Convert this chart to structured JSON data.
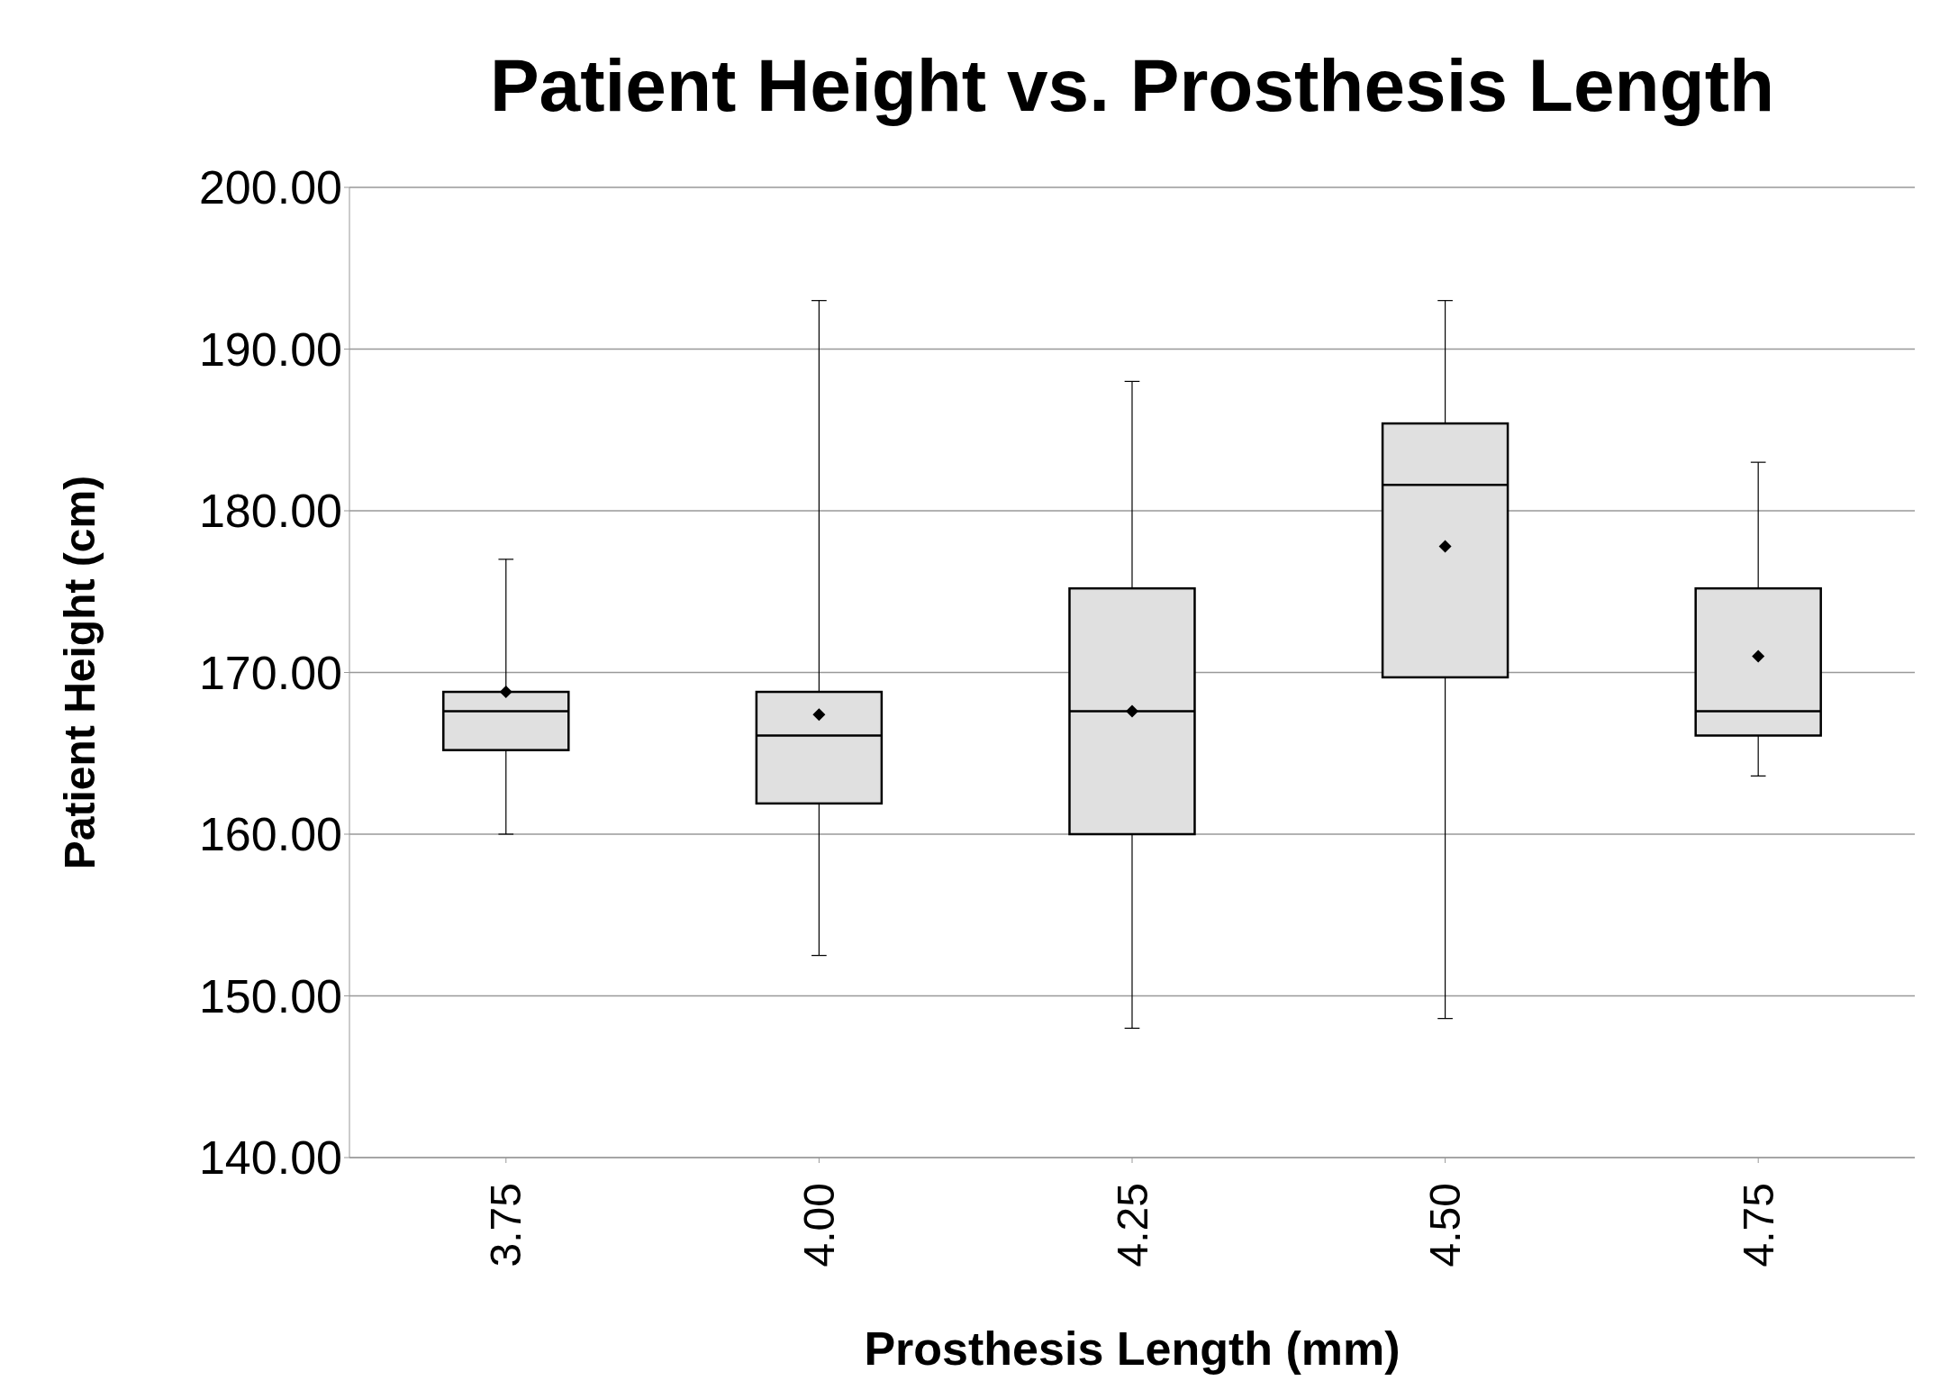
{
  "chart_data": {
    "type": "box",
    "title": "Patient Height vs. Prosthesis Length",
    "xlabel": "Prosthesis Length (mm)",
    "ylabel": "Patient Height (cm)",
    "categories": [
      "3.75",
      "4.00",
      "4.25",
      "4.50",
      "4.75"
    ],
    "color": "#e0e0e0",
    "boxes": [
      {
        "low": 160.0,
        "q1": 165.2,
        "median": 167.6,
        "q3": 168.8,
        "high": 177.0,
        "mean": 168.8
      },
      {
        "low": 152.5,
        "q1": 161.9,
        "median": 166.1,
        "q3": 168.8,
        "high": 193.0,
        "mean": 167.4
      },
      {
        "low": 148.0,
        "q1": 160.0,
        "median": 167.6,
        "q3": 175.2,
        "high": 188.0,
        "mean": 167.6
      },
      {
        "low": 148.6,
        "q1": 169.7,
        "median": 181.6,
        "q3": 185.4,
        "high": 193.0,
        "mean": 177.8
      },
      {
        "low": 163.6,
        "q1": 166.1,
        "median": 167.6,
        "q3": 175.2,
        "high": 183.0,
        "mean": 171.0
      }
    ],
    "ylim": [
      140,
      200
    ],
    "yticks": [
      {
        "value": 140,
        "label": "140.00"
      },
      {
        "value": 150,
        "label": "150.00"
      },
      {
        "value": 160,
        "label": "160.00"
      },
      {
        "value": 170,
        "label": "170.00"
      },
      {
        "value": 180,
        "label": "180.00"
      },
      {
        "value": 190,
        "label": "190.00"
      },
      {
        "value": 200,
        "label": "200.00"
      }
    ],
    "grid": "y"
  }
}
